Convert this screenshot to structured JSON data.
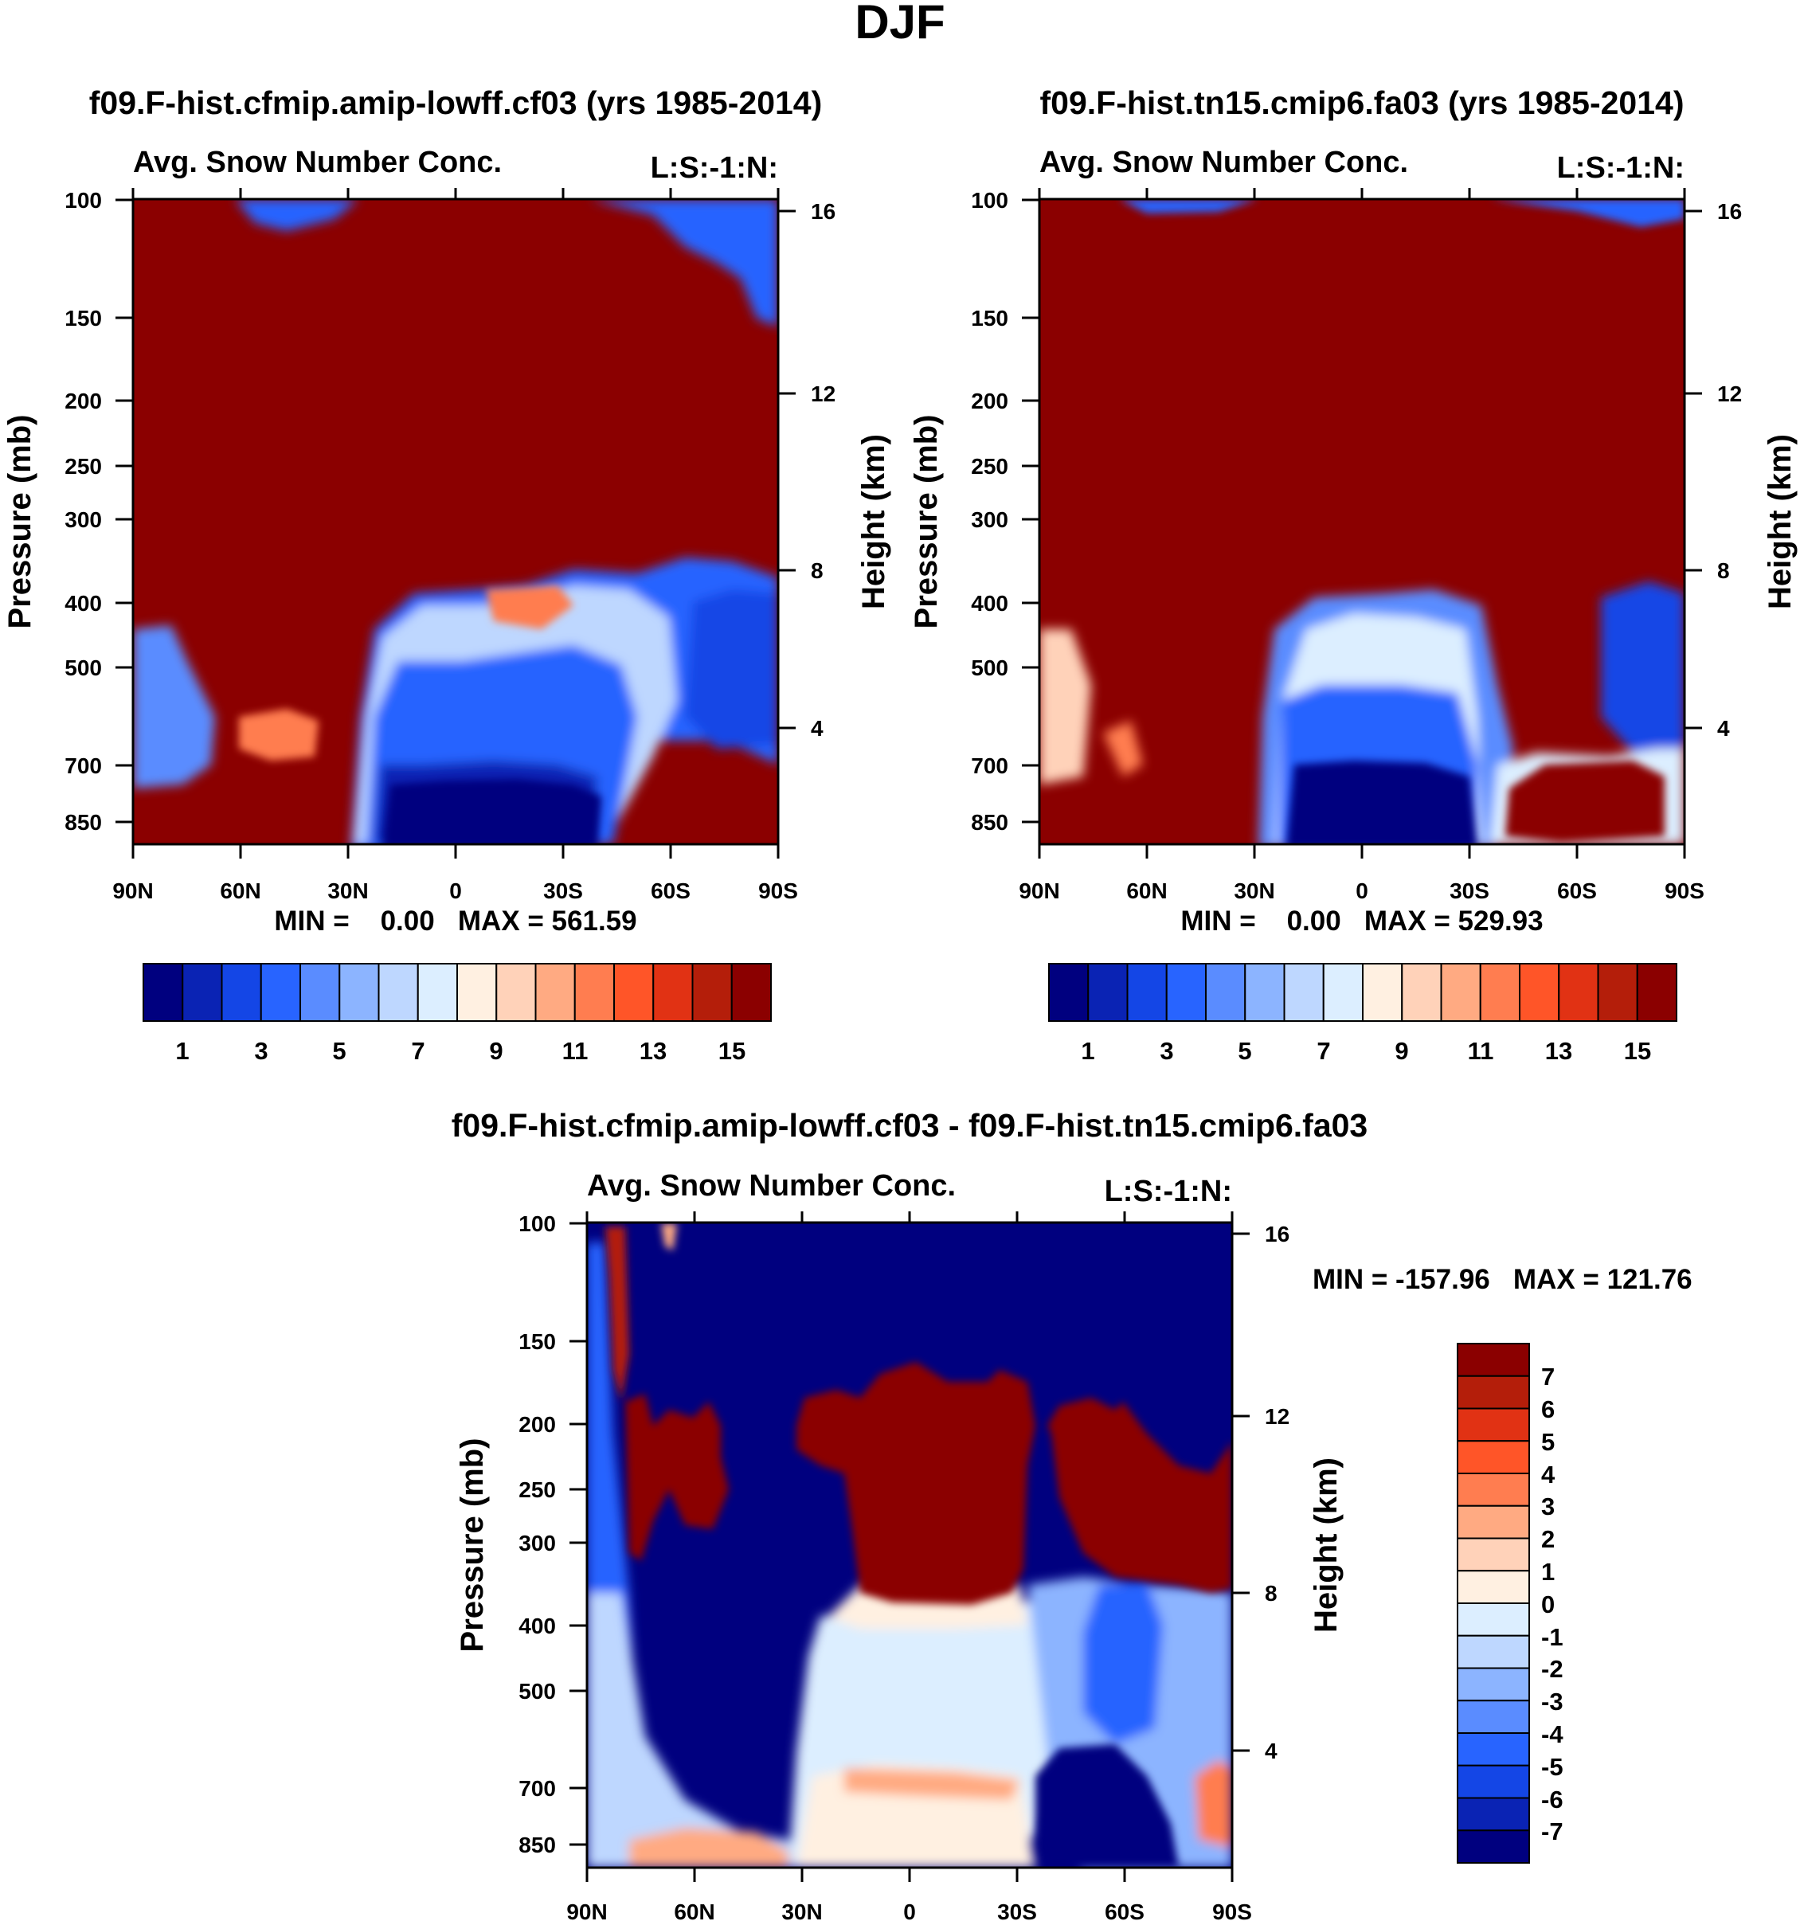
{
  "figure_title": "DJF",
  "chart_data": [
    {
      "type": "heatmap",
      "title": "f09.F-hist.cfmip.amip-lowff.cf03 (yrs 1985-2014)",
      "subtitle_left": "Avg. Snow Number Conc.",
      "subtitle_right": "L:S:-1:N:",
      "xlabel": "",
      "ylabel": "Pressure (mb)",
      "y2label": "Height (km)",
      "x_ticks": [
        "90N",
        "60N",
        "30N",
        "0",
        "30S",
        "60S",
        "90S"
      ],
      "y_ticks": [
        "100",
        "150",
        "200",
        "250",
        "300",
        "400",
        "500",
        "700",
        "850"
      ],
      "y2_ticks": [
        "16",
        "12",
        "8",
        "4"
      ],
      "stats": "MIN =    0.00   MAX = 561.59",
      "colorbar_labels": [
        "1",
        "3",
        "5",
        "7",
        "9",
        "11",
        "13",
        "15"
      ],
      "colorbar_colors": [
        "#00007f",
        "#0a23b4",
        "#1446e6",
        "#2864ff",
        "#5a8cff",
        "#8cb4ff",
        "#bed7ff",
        "#dceeff",
        "#fff0e1",
        "#ffd2b9",
        "#ffaa82",
        "#ff7d50",
        "#ff5528",
        "#e13214",
        "#b41e0a",
        "#8b0000"
      ]
    },
    {
      "type": "heatmap",
      "title": "f09.F-hist.tn15.cmip6.fa03 (yrs 1985-2014)",
      "subtitle_left": "Avg. Snow Number Conc.",
      "subtitle_right": "L:S:-1:N:",
      "xlabel": "",
      "ylabel": "Pressure (mb)",
      "y2label": "Height (km)",
      "x_ticks": [
        "90N",
        "60N",
        "30N",
        "0",
        "30S",
        "60S",
        "90S"
      ],
      "y_ticks": [
        "100",
        "150",
        "200",
        "250",
        "300",
        "400",
        "500",
        "700",
        "850"
      ],
      "y2_ticks": [
        "16",
        "12",
        "8",
        "4"
      ],
      "stats": "MIN =    0.00   MAX = 529.93",
      "colorbar_labels": [
        "1",
        "3",
        "5",
        "7",
        "9",
        "11",
        "13",
        "15"
      ],
      "colorbar_colors": [
        "#00007f",
        "#0a23b4",
        "#1446e6",
        "#2864ff",
        "#5a8cff",
        "#8cb4ff",
        "#bed7ff",
        "#dceeff",
        "#fff0e1",
        "#ffd2b9",
        "#ffaa82",
        "#ff7d50",
        "#ff5528",
        "#e13214",
        "#b41e0a",
        "#8b0000"
      ]
    },
    {
      "type": "heatmap",
      "title": "f09.F-hist.cfmip.amip-lowff.cf03 - f09.F-hist.tn15.cmip6.fa03",
      "subtitle_left": "Avg. Snow Number Conc.",
      "subtitle_right": "L:S:-1:N:",
      "xlabel": "",
      "ylabel": "Pressure (mb)",
      "y2label": "Height (km)",
      "x_ticks": [
        "90N",
        "60N",
        "30N",
        "0",
        "30S",
        "60S",
        "90S"
      ],
      "y_ticks": [
        "100",
        "150",
        "200",
        "250",
        "300",
        "400",
        "500",
        "700",
        "850"
      ],
      "y2_ticks": [
        "16",
        "12",
        "8",
        "4"
      ],
      "stats": "MIN = -157.96   MAX = 121.76",
      "colorbar_labels": [
        "7",
        "6",
        "5",
        "4",
        "3",
        "2",
        "1",
        "0",
        "-1",
        "-2",
        "-3",
        "-4",
        "-5",
        "-6",
        "-7"
      ],
      "colorbar_colors": [
        "#8b0000",
        "#b41e0a",
        "#e13214",
        "#ff5528",
        "#ff7d50",
        "#ffaa82",
        "#ffd2b9",
        "#fff0e1",
        "#dceeff",
        "#bed7ff",
        "#8cb4ff",
        "#5a8cff",
        "#2864ff",
        "#1446e6",
        "#0a23b4",
        "#00007f"
      ]
    }
  ]
}
